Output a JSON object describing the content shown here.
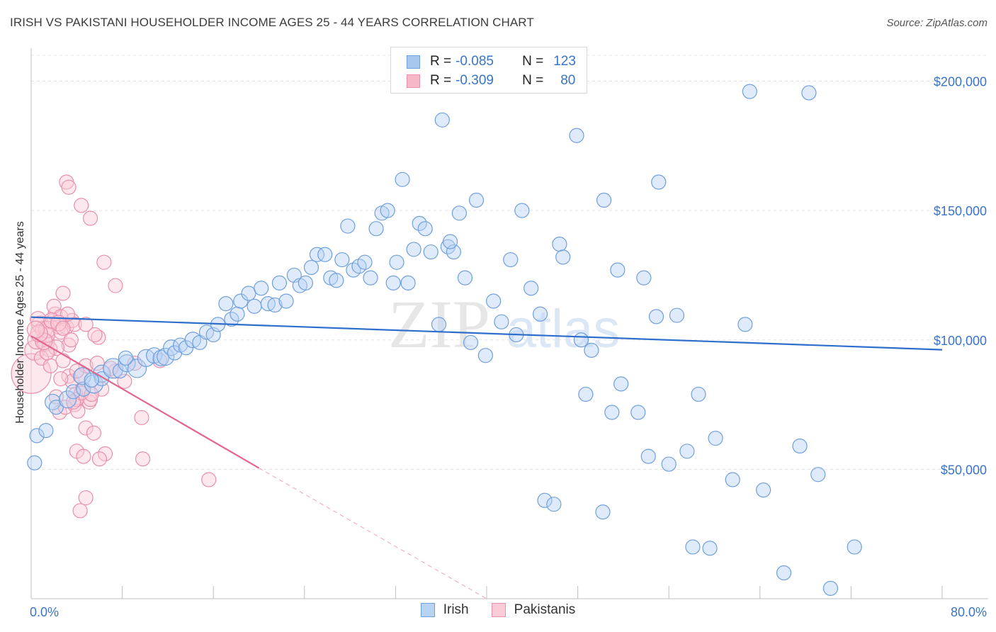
{
  "header": {
    "title": "IRISH VS PAKISTANI HOUSEHOLDER INCOME AGES 25 - 44 YEARS CORRELATION CHART",
    "source": "Source: ZipAtlas.com"
  },
  "stats": [
    {
      "r_label": "R =",
      "r_value": "-0.085",
      "n_label": "N =",
      "n_value": "123",
      "fill": "#a9c6ee",
      "stroke": "#6f9fdc"
    },
    {
      "r_label": "R =",
      "r_value": "-0.309",
      "n_label": "N =",
      "n_value": "80",
      "fill": "#f6b7c8",
      "stroke": "#e98fab"
    }
  ],
  "legend": [
    {
      "label": "Irish",
      "fill": "#b9d3f3",
      "stroke": "#6f9fdc"
    },
    {
      "label": "Pakistanis",
      "fill": "#fbcbd8",
      "stroke": "#e98fab"
    }
  ],
  "watermark": {
    "zip": "ZIP",
    "atlas": "atlas"
  },
  "chart_data": {
    "type": "scatter",
    "xlabel": "",
    "ylabel": "Householder Income Ages 25 - 44 years",
    "xlim": [
      0,
      80
    ],
    "ylim": [
      0,
      210000
    ],
    "x_tick_labels": [
      {
        "value": 0,
        "label": "0.0%"
      },
      {
        "value": 80,
        "label": "80.0%"
      }
    ],
    "x_minor_ticks": [
      8,
      16,
      24,
      32,
      40,
      48,
      56,
      64,
      72,
      80
    ],
    "y_ticks": [
      {
        "value": 50000,
        "label": "$50,000"
      },
      {
        "value": 100000,
        "label": "$100,000"
      },
      {
        "value": 150000,
        "label": "$150,000"
      },
      {
        "value": 200000,
        "label": "$200,000"
      }
    ],
    "grid": true,
    "colors": {
      "irish_fill": "#b9d3f3",
      "irish_stroke": "#6f9fdc",
      "irish_line": "#2e6fcc",
      "pak_fill": "#fbcbd8",
      "pak_stroke": "#e98fab",
      "pak_line": "#e0668e"
    },
    "series": [
      {
        "name": "Irish",
        "trend": {
          "x0": 0,
          "y0": 108800,
          "x1": 80,
          "y1": 96200
        },
        "points": [
          [
            0.3,
            52500,
            10
          ],
          [
            0.5,
            63000,
            10
          ],
          [
            1.3,
            65000,
            10
          ],
          [
            1.9,
            76000,
            11
          ],
          [
            2.2,
            74000,
            10
          ],
          [
            3.2,
            77000,
            12
          ],
          [
            3.7,
            80000,
            10
          ],
          [
            4.6,
            81000,
            10
          ],
          [
            4.5,
            86000,
            12
          ],
          [
            5.5,
            83000,
            13
          ],
          [
            6.2,
            87000,
            12
          ],
          [
            6.2,
            85000,
            10
          ],
          [
            7.2,
            89000,
            14
          ],
          [
            7.8,
            88000,
            10
          ],
          [
            8.4,
            91000,
            12
          ],
          [
            9.3,
            89000,
            13
          ],
          [
            8.3,
            93000,
            10
          ],
          [
            10.1,
            93000,
            12
          ],
          [
            10.8,
            94000,
            11
          ],
          [
            11.4,
            93000,
            11
          ],
          [
            11.8,
            93500,
            12
          ],
          [
            12.3,
            97000,
            11
          ],
          [
            12.6,
            95000,
            10
          ],
          [
            13.1,
            98000,
            10
          ],
          [
            13.6,
            97000,
            10
          ],
          [
            14.2,
            100000,
            11
          ],
          [
            14.8,
            99000,
            10
          ],
          [
            15.4,
            103000,
            10
          ],
          [
            16,
            102000,
            10
          ],
          [
            16.4,
            106000,
            10
          ],
          [
            17.1,
            114000,
            10
          ],
          [
            17.6,
            108000,
            10
          ],
          [
            18.1,
            110000,
            10
          ],
          [
            18.4,
            115000,
            10
          ],
          [
            19.1,
            118000,
            10
          ],
          [
            19.6,
            113000,
            10
          ],
          [
            20.2,
            120000,
            10
          ],
          [
            20.8,
            114000,
            10
          ],
          [
            21.4,
            113500,
            10
          ],
          [
            21.8,
            122000,
            10
          ],
          [
            22.4,
            115000,
            10
          ],
          [
            23.1,
            125000,
            10
          ],
          [
            23.6,
            121000,
            10
          ],
          [
            24.1,
            122000,
            10
          ],
          [
            24.6,
            128000,
            10
          ],
          [
            25.1,
            133000,
            10
          ],
          [
            25.8,
            133000,
            10
          ],
          [
            26.3,
            124000,
            10
          ],
          [
            26.8,
            123000,
            10
          ],
          [
            27.3,
            131000,
            10
          ],
          [
            27.8,
            144000,
            10
          ],
          [
            28.3,
            127000,
            10
          ],
          [
            28.8,
            128500,
            10
          ],
          [
            29.3,
            130000,
            10
          ],
          [
            29.8,
            124000,
            10
          ],
          [
            30.3,
            143000,
            10
          ],
          [
            30.8,
            149000,
            10
          ],
          [
            31.3,
            150000,
            10
          ],
          [
            31.8,
            122000,
            10
          ],
          [
            32.1,
            130000,
            10
          ],
          [
            32.6,
            162000,
            10
          ],
          [
            33.1,
            122000,
            10
          ],
          [
            33.6,
            135000,
            10
          ],
          [
            34.1,
            145000,
            10
          ],
          [
            34.6,
            143000,
            10
          ],
          [
            35.1,
            134000,
            10
          ],
          [
            35.8,
            106000,
            10
          ],
          [
            36.1,
            185000,
            10
          ],
          [
            36.6,
            136000,
            10
          ],
          [
            37.1,
            134000,
            10
          ],
          [
            37.6,
            149000,
            10
          ],
          [
            38.1,
            124000,
            10
          ],
          [
            38.6,
            99000,
            10
          ],
          [
            39.1,
            154000,
            10
          ],
          [
            39.9,
            94000,
            10
          ],
          [
            40.6,
            115000,
            10
          ],
          [
            41.3,
            107000,
            10
          ],
          [
            42.1,
            131000,
            10
          ],
          [
            42.6,
            102000,
            10
          ],
          [
            43.1,
            150000,
            10
          ],
          [
            43.9,
            120000,
            10
          ],
          [
            44.7,
            110000,
            10
          ],
          [
            45.1,
            38000,
            10
          ],
          [
            45.9,
            36500,
            10
          ],
          [
            46.4,
            137000,
            10
          ],
          [
            46.7,
            132000,
            10
          ],
          [
            47.9,
            179000,
            10
          ],
          [
            48.3,
            100000,
            10
          ],
          [
            48.7,
            79000,
            10
          ],
          [
            49.2,
            96000,
            10
          ],
          [
            50.2,
            33500,
            10
          ],
          [
            50.3,
            154000,
            10
          ],
          [
            51,
            72000,
            10
          ],
          [
            51.5,
            127000,
            10
          ],
          [
            51.8,
            83000,
            10
          ],
          [
            53.3,
            72000,
            10
          ],
          [
            53.8,
            124000,
            10
          ],
          [
            54.2,
            55000,
            10
          ],
          [
            54.9,
            109000,
            10
          ],
          [
            55.1,
            161000,
            10
          ],
          [
            56,
            52000,
            10
          ],
          [
            56.7,
            109500,
            10
          ],
          [
            57.6,
            57000,
            10
          ],
          [
            58.1,
            20000,
            10
          ],
          [
            58.6,
            79000,
            10
          ],
          [
            59.6,
            19500,
            10
          ],
          [
            60.1,
            62000,
            10
          ],
          [
            61.6,
            46000,
            10
          ],
          [
            62.7,
            106000,
            10
          ],
          [
            63.1,
            196000,
            10
          ],
          [
            64.3,
            42000,
            10
          ],
          [
            66.1,
            10000,
            10
          ],
          [
            67.5,
            59000,
            10
          ],
          [
            68.3,
            195500,
            10
          ],
          [
            69.1,
            48000,
            10
          ],
          [
            70.2,
            4000,
            10
          ],
          [
            72.3,
            20000,
            10
          ],
          [
            36.8,
            138000,
            10
          ],
          [
            5.3,
            84500,
            10
          ]
        ]
      },
      {
        "name": "Pakistanis",
        "trend": {
          "x0": 0,
          "y0": 101500,
          "x1": 20,
          "y1": 50500,
          "dash_to_x": 40,
          "dash_to_y": 0
        },
        "points": [
          [
            0,
            87000,
            28
          ],
          [
            0.3,
            96000,
            14
          ],
          [
            0.5,
            100000,
            13
          ],
          [
            0.8,
            106000,
            12
          ],
          [
            1.1,
            104000,
            12
          ],
          [
            1.3,
            99000,
            12
          ],
          [
            1.6,
            96500,
            11
          ],
          [
            1.9,
            107000,
            11
          ],
          [
            2.1,
            110000,
            10
          ],
          [
            2.4,
            105000,
            10
          ],
          [
            0.6,
            108000,
            11
          ],
          [
            2.8,
            118000,
            10
          ],
          [
            3.1,
            105000,
            10
          ],
          [
            3.3,
            98000,
            10
          ],
          [
            3.6,
            107500,
            10
          ],
          [
            3.8,
            106000,
            10
          ],
          [
            2.0,
            113000,
            10
          ],
          [
            2.6,
            109000,
            10
          ],
          [
            1.4,
            102000,
            11
          ],
          [
            2.2,
            97000,
            11
          ],
          [
            0.9,
            93000,
            10
          ],
          [
            1.7,
            90000,
            10
          ],
          [
            2.8,
            92000,
            10
          ],
          [
            3.3,
            86000,
            10
          ],
          [
            3.6,
            84000,
            10
          ],
          [
            4.3,
            86000,
            10
          ],
          [
            4.5,
            81000,
            10
          ],
          [
            5.1,
            76000,
            10
          ],
          [
            3.9,
            79000,
            10
          ],
          [
            4.8,
            90000,
            10
          ],
          [
            5.2,
            77000,
            10
          ],
          [
            2.5,
            72000,
            10
          ],
          [
            3.0,
            74000,
            10
          ],
          [
            3.8,
            75000,
            10
          ],
          [
            4.1,
            72500,
            10
          ],
          [
            4.8,
            66000,
            10
          ],
          [
            5.5,
            64000,
            10
          ],
          [
            5.9,
            101000,
            10
          ],
          [
            6.4,
            130000,
            10
          ],
          [
            7.4,
            121000,
            10
          ],
          [
            3.1,
            161000,
            10
          ],
          [
            3.3,
            159000,
            10
          ],
          [
            4.4,
            152000,
            10
          ],
          [
            5.2,
            147000,
            10
          ],
          [
            1.4,
            104000,
            12
          ],
          [
            2.6,
            103000,
            10
          ],
          [
            5.6,
            102000,
            10
          ],
          [
            6.2,
            81000,
            10
          ],
          [
            6.5,
            56000,
            10
          ],
          [
            7.4,
            88000,
            10
          ],
          [
            8.2,
            84000,
            10
          ],
          [
            9.1,
            91000,
            10
          ],
          [
            9.7,
            70000,
            10
          ],
          [
            9.8,
            54000,
            10
          ],
          [
            11.3,
            92000,
            10
          ],
          [
            15.6,
            46000,
            10
          ],
          [
            4.0,
            57000,
            10
          ],
          [
            4.6,
            55000,
            10
          ],
          [
            4.0,
            77000,
            10
          ],
          [
            4.4,
            79500,
            10
          ],
          [
            3.7,
            76000,
            10
          ],
          [
            4.8,
            39000,
            10
          ],
          [
            4.3,
            34000,
            10
          ],
          [
            6.0,
            54000,
            10
          ],
          [
            5.3,
            79000,
            10
          ],
          [
            2.6,
            85000,
            10
          ],
          [
            2.2,
            78000,
            10
          ],
          [
            1.4,
            95000,
            10
          ],
          [
            3.2,
            110000,
            10
          ],
          [
            1.8,
            107500,
            11
          ],
          [
            2.4,
            106500,
            11
          ],
          [
            2.8,
            104500,
            10
          ],
          [
            4.8,
            106000,
            10
          ],
          [
            4.0,
            88000,
            10
          ],
          [
            1.1,
            99500,
            12
          ],
          [
            0.7,
            102500,
            12
          ],
          [
            0.4,
            104000,
            12
          ],
          [
            3.5,
            100000,
            10
          ],
          [
            5.8,
            91000,
            10
          ],
          [
            7.0,
            89000,
            10
          ]
        ]
      }
    ]
  }
}
